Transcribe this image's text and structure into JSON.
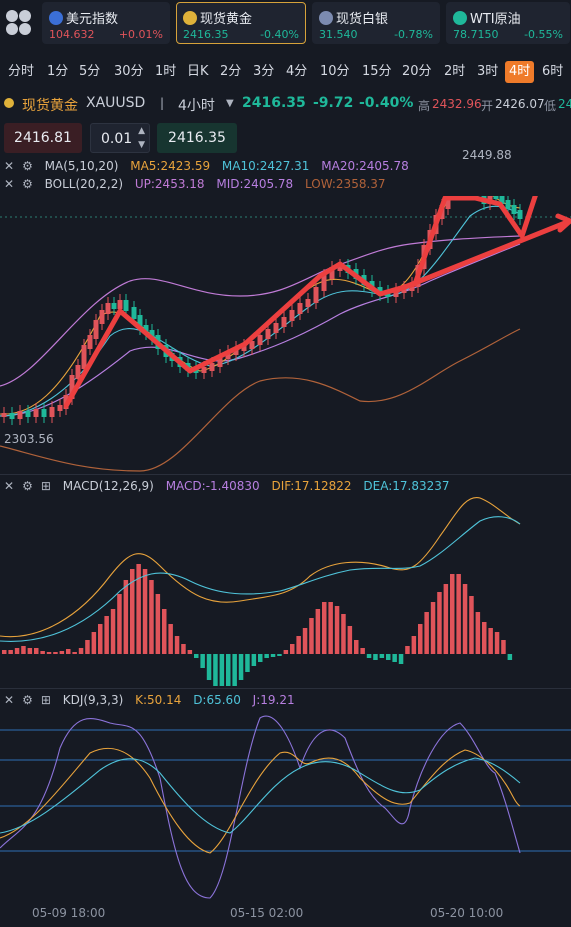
{
  "tickers": [
    {
      "name": "美元指数",
      "price": "104.632",
      "change": "+0.01%",
      "dir": "up",
      "flag": "#3b6fd6"
    },
    {
      "name": "现货黄金",
      "price": "2416.35",
      "change": "-0.40%",
      "dir": "down",
      "flag": "#e0b23a"
    },
    {
      "name": "现货白银",
      "price": "31.540",
      "change": "-0.78%",
      "dir": "down",
      "flag": "#7c8bb0"
    },
    {
      "name": "WTI原油",
      "price": "78.7150",
      "change": "-0.55%",
      "dir": "down",
      "flag": "#1fb89a"
    }
  ],
  "periods": [
    "分时",
    "1分",
    "5分",
    "30分",
    "1时",
    "日K",
    "2分",
    "3分",
    "4分",
    "10分",
    "15分",
    "20分",
    "2时",
    "3时",
    "4时",
    "6时"
  ],
  "selected_period": "4时",
  "symbol": {
    "name": "现货黄金",
    "code": "XAUUSD",
    "interval": "4小时",
    "price": "2416.35",
    "change": "-9.72",
    "pct": "-0.40%",
    "high_label": "高",
    "high": "2432.96",
    "open_label": "开",
    "open": "2426.07",
    "low_label": "低",
    "low": "24"
  },
  "trade": {
    "sell": "2416.81",
    "qty": "0.01",
    "buy": "2416.35"
  },
  "ma": {
    "label": "MA(5,10,20)",
    "ma5": "MA5:2423.59",
    "ma10": "MA10:2427.31",
    "ma20": "MA20:2405.78"
  },
  "boll": {
    "label": "BOLL(20,2,2)",
    "up": "UP:2453.18",
    "mid": "MID:2405.78",
    "low": "LOW:2358.37"
  },
  "price_labels": {
    "high": "2449.88",
    "low": "2303.56"
  },
  "macd": {
    "label": "MACD(12,26,9)",
    "macd": "MACD:-1.40830",
    "dif": "DIF:17.12822",
    "dea": "DEA:17.83237"
  },
  "kdj": {
    "label": "KDJ(9,3,3)",
    "k": "K:50.14",
    "d": "D:65.60",
    "j": "J:19.21"
  },
  "dates": [
    "05-09 18:00",
    "05-15 02:00",
    "05-20 10:00"
  ],
  "colors": {
    "accent": "#ef7b2a",
    "up": "#e0545a",
    "down": "#1fb89a",
    "ma5": "#e8a33c",
    "ma10": "#4fc3d9",
    "ma20": "#b77fe0",
    "boll_mid": "#b77fe0",
    "boll_up": "#c07bd6",
    "boll_low": "#b0623a"
  }
}
